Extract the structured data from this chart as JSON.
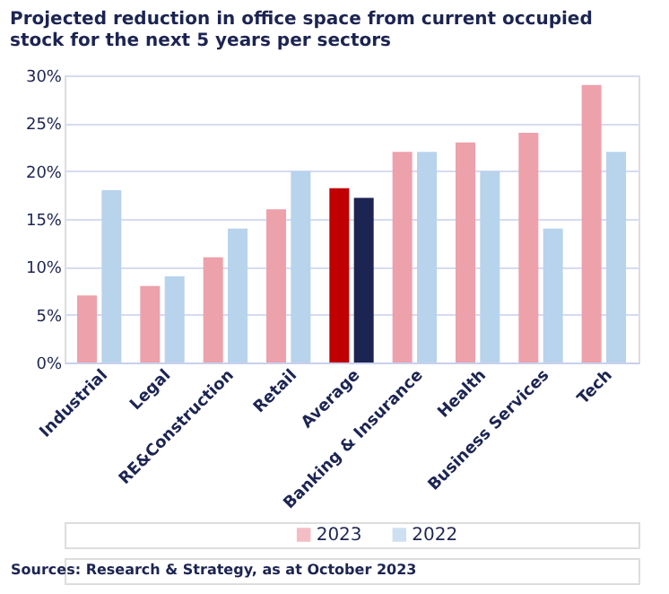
{
  "chart_data": {
    "type": "bar",
    "title": "Projected reduction in office space from current occupied stock for the next 5 years per sectors",
    "categories": [
      "Industrial",
      "Legal",
      "RE&Construction",
      "Retail",
      "Average",
      "Banking & Insurance",
      "Health",
      "Business Services",
      "Tech"
    ],
    "series": [
      {
        "name": "2023",
        "color": "#eda1ab",
        "colors": [
          "#eda1ab",
          "#eda1ab",
          "#eda1ab",
          "#eda1ab",
          "#c00000",
          "#eda1ab",
          "#eda1ab",
          "#eda1ab",
          "#eda1ab"
        ],
        "values": [
          7,
          8,
          11,
          16,
          18.2,
          22,
          23,
          24,
          29
        ]
      },
      {
        "name": "2022",
        "color": "#b8d3ec",
        "colors": [
          "#b8d3ec",
          "#b8d3ec",
          "#b8d3ec",
          "#b8d3ec",
          "#1c2452",
          "#b8d3ec",
          "#b8d3ec",
          "#b8d3ec",
          "#b8d3ec"
        ],
        "values": [
          18,
          9,
          14,
          20,
          17.2,
          22,
          20,
          14,
          22
        ]
      }
    ],
    "ylim": [
      0,
      30
    ],
    "yticks": [
      {
        "value": 0,
        "label": "0%"
      },
      {
        "value": 5,
        "label": "5%"
      },
      {
        "value": 10,
        "label": "10%"
      },
      {
        "value": 15,
        "label": "15%"
      },
      {
        "value": 20,
        "label": "20%"
      },
      {
        "value": 25,
        "label": "25%"
      },
      {
        "value": 30,
        "label": "30%"
      }
    ],
    "grid": "y",
    "legend": "bottom",
    "annotations": [
      "Sources: Research & Strategy, as at October 2023"
    ]
  }
}
